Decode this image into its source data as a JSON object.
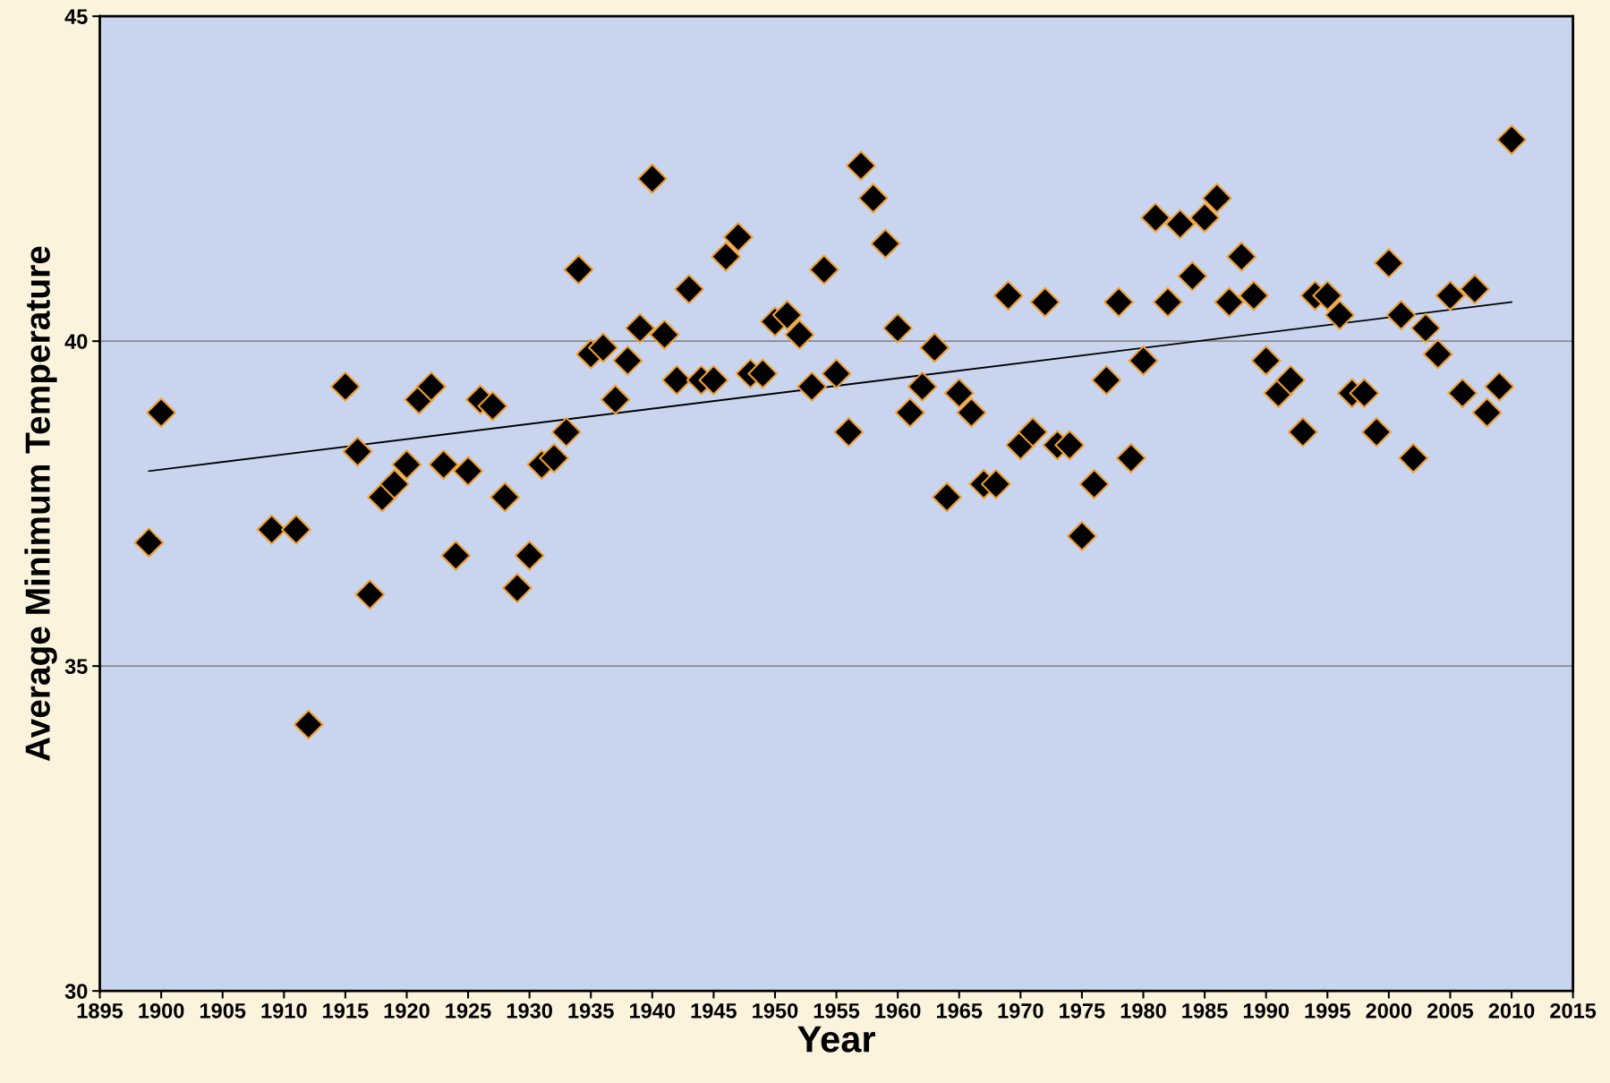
{
  "chart_data": {
    "type": "scatter",
    "xlabel": "Year",
    "ylabel": "Average Minimum Temperature",
    "xlim": [
      1895,
      2015
    ],
    "xticks": [
      1895,
      1900,
      1905,
      1910,
      1915,
      1920,
      1925,
      1930,
      1935,
      1940,
      1945,
      1950,
      1955,
      1960,
      1965,
      1970,
      1975,
      1980,
      1985,
      1990,
      1995,
      2000,
      2005,
      2010,
      2015
    ],
    "ylim": [
      30,
      45
    ],
    "yticks": [
      30,
      35,
      40,
      45
    ],
    "grid": "y",
    "legend": false,
    "series": [
      {
        "color": "#000000",
        "marker": "diamond",
        "x": [
          1899,
          1900,
          1909,
          1911,
          1912,
          1915,
          1916,
          1917,
          1918,
          1919,
          1920,
          1921,
          1922,
          1923,
          1924,
          1925,
          1926,
          1927,
          1928,
          1929,
          1930,
          1931,
          1932,
          1933,
          1934,
          1935,
          1936,
          1937,
          1938,
          1939,
          1940,
          1941,
          1942,
          1943,
          1944,
          1945,
          1946,
          1947,
          1948,
          1949,
          1950,
          1951,
          1952,
          1953,
          1954,
          1955,
          1956,
          1957,
          1958,
          1959,
          1960,
          1961,
          1962,
          1963,
          1964,
          1965,
          1966,
          1967,
          1968,
          1969,
          1970,
          1971,
          1972,
          1973,
          1974,
          1975,
          1976,
          1977,
          1978,
          1979,
          1980,
          1981,
          1982,
          1983,
          1984,
          1985,
          1986,
          1987,
          1988,
          1989,
          1990,
          1991,
          1992,
          1993,
          1994,
          1995,
          1996,
          1997,
          1998,
          1999,
          2000,
          2001,
          2002,
          2003,
          2004,
          2005,
          2006,
          2007,
          2008,
          2009,
          2010
        ],
        "values": [
          36.9,
          38.9,
          37.1,
          37.1,
          34.1,
          39.3,
          38.3,
          36.1,
          37.6,
          37.8,
          38.1,
          39.1,
          39.3,
          38.1,
          36.7,
          38.0,
          39.1,
          39.0,
          37.6,
          36.2,
          36.7,
          38.1,
          38.2,
          38.6,
          41.1,
          39.8,
          39.9,
          39.1,
          39.7,
          40.2,
          42.5,
          40.1,
          39.4,
          40.8,
          39.4,
          39.4,
          41.3,
          41.6,
          39.5,
          39.5,
          40.3,
          40.4,
          40.1,
          39.3,
          41.1,
          39.5,
          38.6,
          42.7,
          42.2,
          41.5,
          40.2,
          38.9,
          39.3,
          39.9,
          37.6,
          39.2,
          38.9,
          37.8,
          37.8,
          40.7,
          38.4,
          38.6,
          40.6,
          38.4,
          38.4,
          37.0,
          37.8,
          39.4,
          40.6,
          38.2,
          39.7,
          41.9,
          40.6,
          41.8,
          41.0,
          41.9,
          42.2,
          40.6,
          41.3,
          40.7,
          39.7,
          39.2,
          39.4,
          38.6,
          40.7,
          40.7,
          40.4,
          39.2,
          39.2,
          38.6,
          41.2,
          40.4,
          38.2,
          40.2,
          39.8,
          40.7,
          39.2,
          40.8,
          38.9,
          39.3,
          43.1
        ]
      },
      {
        "type": "line",
        "marker": "none",
        "color": "#000000",
        "x": [
          1899,
          2010
        ],
        "values": [
          38.0,
          40.6
        ]
      }
    ]
  }
}
